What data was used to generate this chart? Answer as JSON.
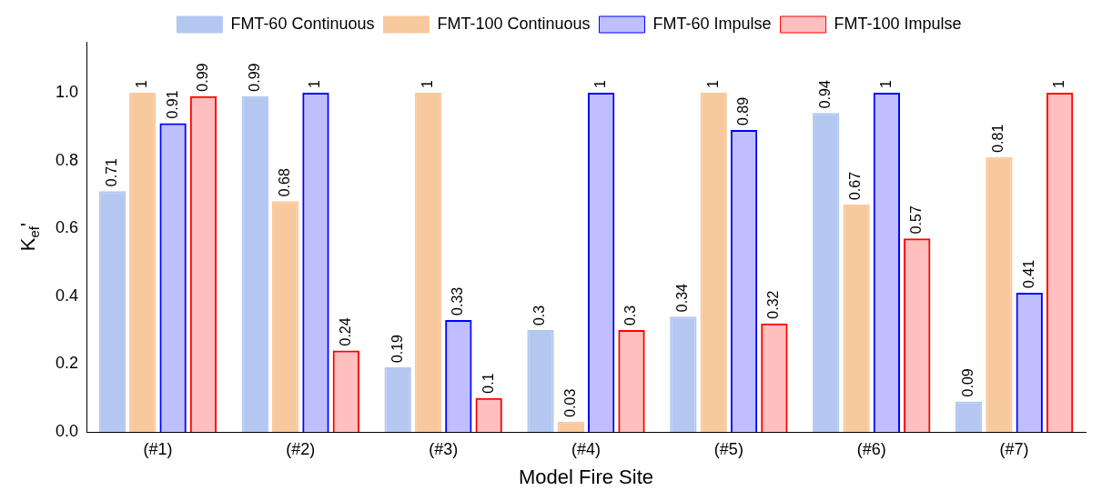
{
  "chart_data": {
    "type": "bar",
    "xlabel": "Model Fire Site",
    "ylabel": "K$_{ef}$'",
    "categories": [
      "(#1)",
      "(#2)",
      "(#3)",
      "(#4)",
      "(#5)",
      "(#6)",
      "(#7)"
    ],
    "series": [
      {
        "name": "FMT-60 Continuous",
        "color": "#b4c7f0",
        "values": [
          0.71,
          0.99,
          0.19,
          0.3,
          0.34,
          0.94,
          0.09
        ]
      },
      {
        "name": "FMT-100 Continuous",
        "color": "#f8c99c",
        "values": [
          1,
          0.68,
          1,
          0.03,
          1,
          0.67,
          0.81
        ]
      },
      {
        "name": "FMT-60 Impulse",
        "color": "#0000ff",
        "values": [
          0.91,
          1,
          0.33,
          1,
          0.89,
          1,
          0.41
        ]
      },
      {
        "name": "FMT-100 Impulse",
        "color": "#ff0000",
        "values": [
          0.99,
          0.24,
          0.1,
          0.3,
          0.32,
          0.57,
          1
        ]
      }
    ],
    "ylim": [
      0,
      1.15
    ],
    "yticks": [
      {
        "value": 0,
        "label": "0.0"
      },
      {
        "value": 0.2,
        "label": "0.2"
      },
      {
        "value": 0.4,
        "label": "0.4"
      },
      {
        "value": 0.6,
        "label": "0.6"
      },
      {
        "value": 0.8,
        "label": "0.8"
      },
      {
        "value": 1,
        "label": "1.0"
      }
    ],
    "grid": false,
    "legend": "top",
    "data_labels": true
  }
}
